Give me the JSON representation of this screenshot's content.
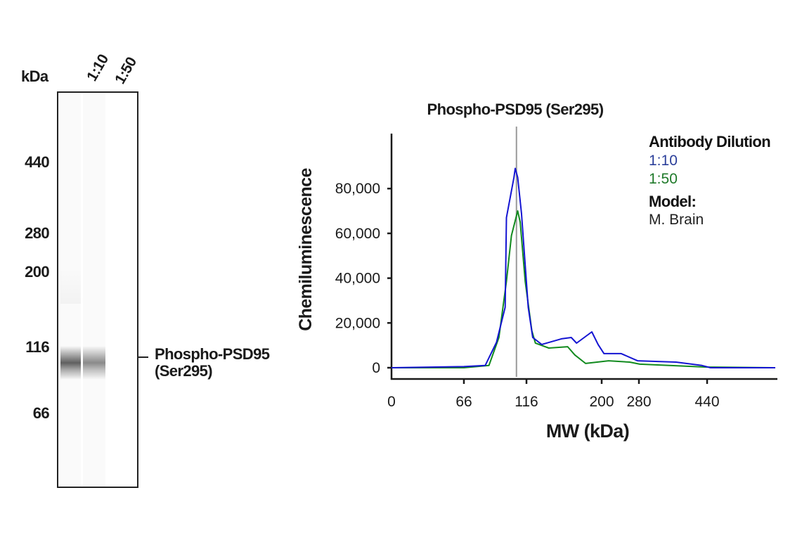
{
  "blot": {
    "unit_label": "kDa",
    "lanes": [
      "1:10",
      "1:50"
    ],
    "markers": [
      "440",
      "280",
      "200",
      "116",
      "66"
    ],
    "band_label_line1": "Phospho-PSD95",
    "band_label_line2": "(Ser295)",
    "band_intensity": [
      0.62,
      0.45
    ]
  },
  "chart_data": {
    "type": "line",
    "title": "Phospho-PSD95 (Ser295)",
    "xlabel": "MW (kDa)",
    "ylabel": "Chemiluminescence",
    "x_ticks": [
      "0",
      "66",
      "116",
      "200",
      "280",
      "440"
    ],
    "y_ticks": [
      "0",
      "20,000",
      "40,000",
      "60,000",
      "80,000"
    ],
    "ylim": [
      0,
      104000
    ],
    "x_scale": "nonlinear (MW)",
    "marker_mw": 108,
    "grid": false,
    "legend": {
      "position": "top-right",
      "heading": "Antibody Dilution",
      "model_heading": "Model:",
      "model_value": "M. Brain"
    },
    "series": [
      {
        "name": "1:10",
        "color": "#1414d2",
        "label_color": "#2b3f9a",
        "points": [
          [
            0,
            0
          ],
          [
            66,
            500
          ],
          [
            83,
            1000
          ],
          [
            92,
            11300
          ],
          [
            99,
            27000
          ],
          [
            100,
            67000
          ],
          [
            106,
            85000
          ],
          [
            107,
            89000
          ],
          [
            109,
            85000
          ],
          [
            112,
            69000
          ],
          [
            118,
            27000
          ],
          [
            123,
            13500
          ],
          [
            133,
            10400
          ],
          [
            155,
            12900
          ],
          [
            166,
            13500
          ],
          [
            172,
            11000
          ],
          [
            189,
            16000
          ],
          [
            196,
            10400
          ],
          [
            205,
            6300
          ],
          [
            242,
            6300
          ],
          [
            277,
            3100
          ],
          [
            367,
            2500
          ],
          [
            428,
            1000
          ],
          [
            448,
            0
          ],
          [
            600,
            0
          ]
        ]
      },
      {
        "name": "1:50",
        "color": "#118a1e",
        "label_color": "#1f7a2a",
        "points": [
          [
            0,
            0
          ],
          [
            66,
            0
          ],
          [
            86,
            1000
          ],
          [
            94,
            13500
          ],
          [
            100,
            38600
          ],
          [
            104,
            59000
          ],
          [
            109,
            70000
          ],
          [
            111,
            65000
          ],
          [
            115,
            38600
          ],
          [
            122,
            16600
          ],
          [
            126,
            11000
          ],
          [
            141,
            8800
          ],
          [
            162,
            9400
          ],
          [
            170,
            5700
          ],
          [
            182,
            1900
          ],
          [
            215,
            3100
          ],
          [
            260,
            2500
          ],
          [
            282,
            1600
          ],
          [
            435,
            300
          ],
          [
            600,
            0
          ]
        ]
      }
    ]
  }
}
